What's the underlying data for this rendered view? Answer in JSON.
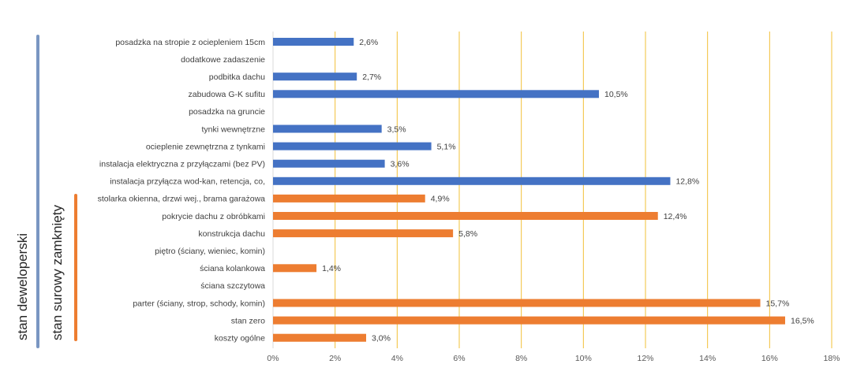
{
  "chart_data": {
    "type": "bar",
    "orientation": "horizontal",
    "title": "",
    "xlabel": "",
    "ylabel": "",
    "xlim": [
      0,
      18
    ],
    "x_ticks": [
      "0%",
      "2%",
      "4%",
      "6%",
      "8%",
      "10%",
      "12%",
      "14%",
      "16%",
      "18%"
    ],
    "grid": "vertical",
    "gridline_color": "#f2c037",
    "categories": [
      "posadzka na stropie z ociepleniem 15cm",
      "dodatkowe zadaszenie",
      "podbitka dachu",
      "zabudowa G-K sufitu",
      "posadzka na gruncie",
      "tynki wewnętrzne",
      "ocieplenie zewnętrzna z tynkami",
      "instalacja elektryczna z przyłączami (bez PV)",
      "instalacja przyłącza wod-kan, retencja, co,",
      "stolarka okienna, drzwi wej., brama garażowa",
      "pokrycie dachu z obróbkami",
      "konstrukcja dachu",
      "piętro (ściany, wieniec, komin)",
      "ściana kolankowa",
      "ściana szczytowa",
      "parter (ściany, strop, schody, komin)",
      "stan zero",
      "koszty ogólne"
    ],
    "values": [
      2.6,
      null,
      2.7,
      10.5,
      null,
      3.5,
      5.1,
      3.6,
      12.8,
      4.9,
      12.4,
      5.8,
      null,
      1.4,
      null,
      15.7,
      16.5,
      3.0
    ],
    "value_labels": [
      "2,6%",
      "",
      "2,7%",
      "10,5%",
      "",
      "3,5%",
      "5,1%",
      "3,6%",
      "12,8%",
      "4,9%",
      "12,4%",
      "5,8%",
      "",
      "1,4%",
      "",
      "15,7%",
      "16,5%",
      "3,0%"
    ],
    "groups": [
      {
        "name": "stan deweloperski",
        "from": 0,
        "to": 17,
        "color": "#7a96c2"
      },
      {
        "name": "stan surowy zamknięty",
        "from": 9,
        "to": 17,
        "color": "#ed7d31"
      }
    ],
    "bar_colors": {
      "blue": "#4472c4",
      "orange": "#ed7d31"
    }
  }
}
